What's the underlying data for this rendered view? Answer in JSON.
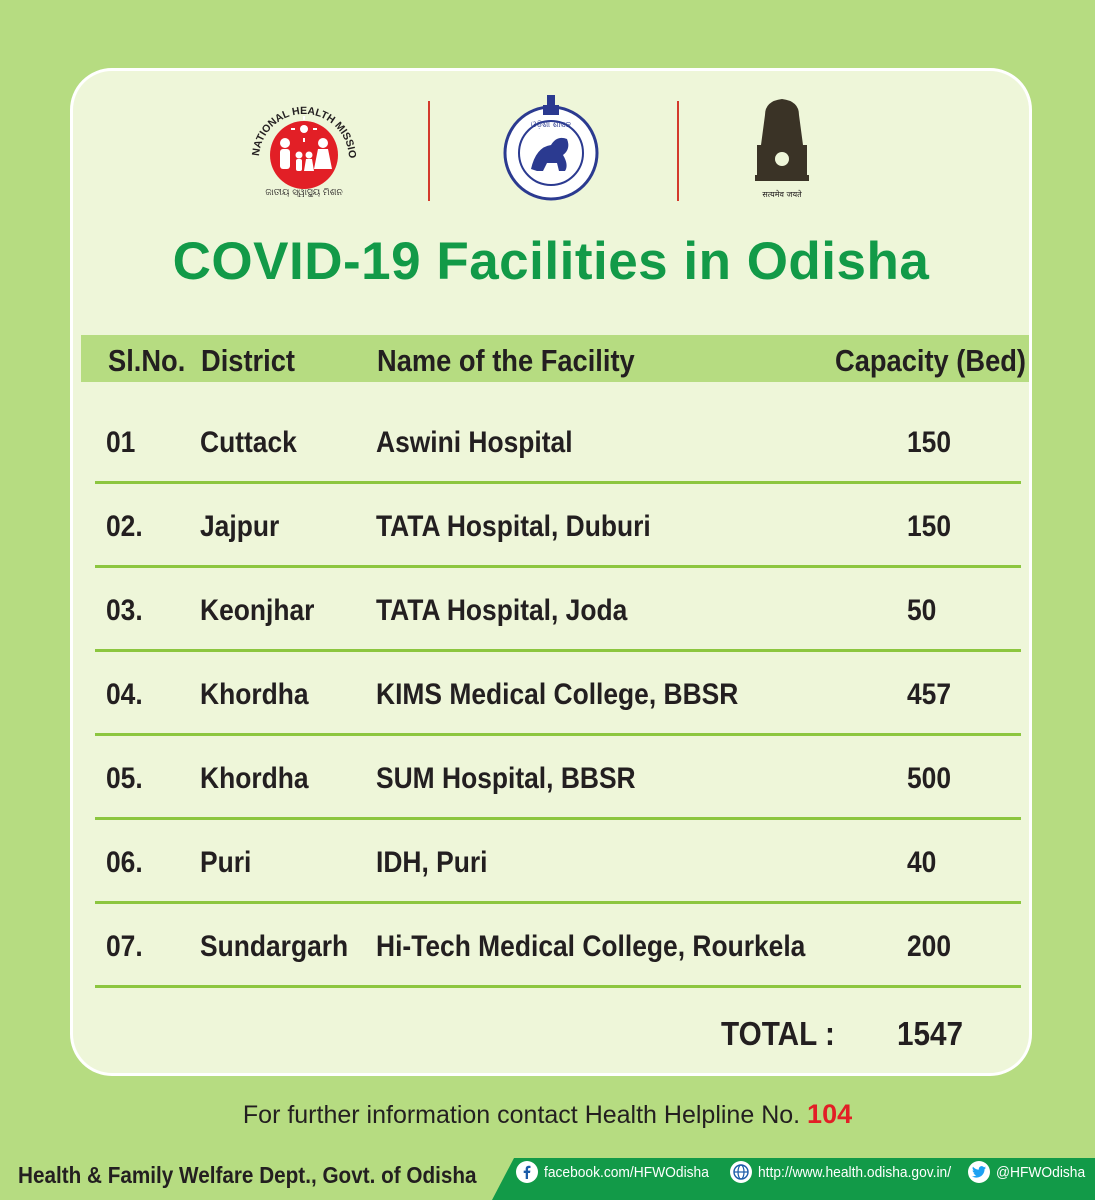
{
  "logos": {
    "nhm_text": "NATIONAL HEALTH MISSION",
    "nhm_subtext": "ଜାତୀୟ ସ୍ୱାସ୍ଥ୍ୟ ମିଶନ",
    "odisha_top": "ଓଡ଼ିଶା ଶାସନ",
    "emblem_motto": "सत्यमेव जयते"
  },
  "title": "COVID-19 Facilities in Odisha",
  "table": {
    "headers": {
      "slno": "Sl.No.",
      "district": "District",
      "facility": "Name of the Facility",
      "capacity": "Capacity (Bed)"
    },
    "rows": [
      {
        "slno": "01",
        "district": "Cuttack",
        "facility": "Aswini Hospital",
        "capacity": "150"
      },
      {
        "slno": "02.",
        "district": "Jajpur",
        "facility": "TATA Hospital, Duburi",
        "capacity": "150"
      },
      {
        "slno": "03.",
        "district": "Keonjhar",
        "facility": "TATA Hospital, Joda",
        "capacity": "50"
      },
      {
        "slno": "04.",
        "district": "Khordha",
        "facility": "KIMS Medical College, BBSR",
        "capacity": "457"
      },
      {
        "slno": "05.",
        "district": "Khordha",
        "facility": "SUM Hospital, BBSR",
        "capacity": "500"
      },
      {
        "slno": "06.",
        "district": "Puri",
        "facility": "IDH, Puri",
        "capacity": "40"
      },
      {
        "slno": "07.",
        "district": "Sundargarh",
        "facility": "Hi-Tech Medical College, Rourkela",
        "capacity": "200"
      }
    ],
    "total_label": "TOTAL :",
    "total_value": "1547"
  },
  "info": {
    "text": "For further information contact Health Helpline No.",
    "number": "104"
  },
  "footer": {
    "dept": "Health & Family Welfare Dept., Govt. of Odisha",
    "facebook": "facebook.com/HFWOdisha",
    "website": "http://www.health.odisha.gov.in/",
    "twitter": "@HFWOdisha"
  },
  "colors": {
    "background": "#b6dc81",
    "card": "#eef6d9",
    "title": "#129a48",
    "header_band": "#b6dc81",
    "row_line": "#8cc63f",
    "helpline": "#e21f26",
    "footer_bar": "#129a48"
  }
}
